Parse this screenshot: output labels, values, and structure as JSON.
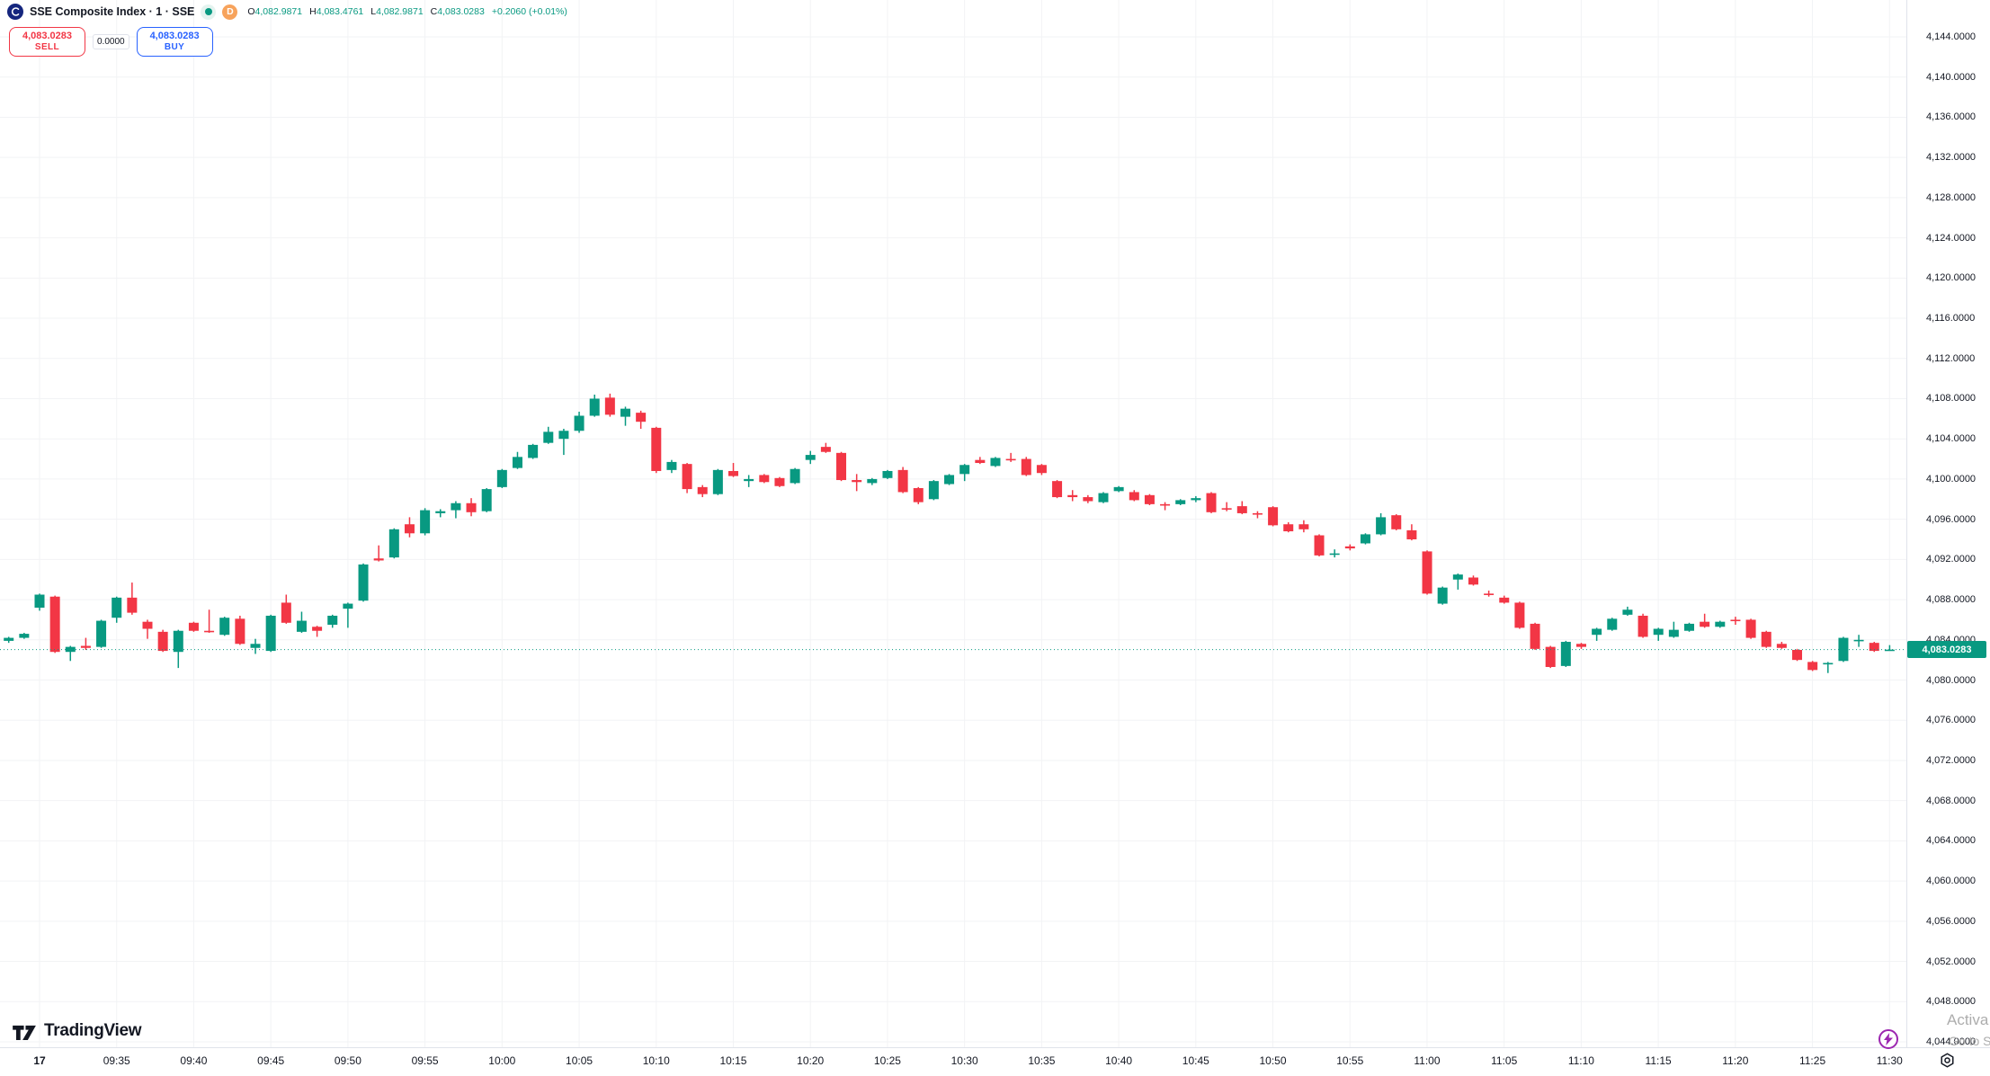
{
  "header": {
    "symbol_title": "SSE Composite Index · 1 · SSE",
    "status_dot_color": "#089981",
    "delay_badge": "D",
    "ohlc": {
      "open_label": "O",
      "open": "4,082.9871",
      "high_label": "H",
      "high": "4,083.4761",
      "low_label": "L",
      "low": "4,082.9871",
      "close_label": "C",
      "close": "4,083.0283",
      "change": "+0.2060 (+0.01%)"
    },
    "sell_button": {
      "price": "4,083.0283",
      "label": "SELL"
    },
    "spread": "0.0000",
    "buy_button": {
      "price": "4,083.0283",
      "label": "BUY"
    }
  },
  "colors": {
    "up": "#089981",
    "down": "#F23645",
    "buy_blue": "#2962FF",
    "sell_red": "#F23645",
    "badge_orange": "#F7A35C",
    "flash_purple": "#9C27B0",
    "grid": "#f2f3f5",
    "axis_text": "#131722"
  },
  "chart_data": {
    "type": "candlestick",
    "title": "SSE Composite Index, 1 minute, SSE",
    "xlabel": "time",
    "ylabel": "price",
    "ylim": [
      4044,
      4144
    ],
    "grid": true,
    "legend_position": "top-left",
    "current_price": 4083.0283,
    "candles_format": [
      "time",
      "open",
      "high",
      "low",
      "close"
    ],
    "candles": [
      [
        "09:28",
        4083.9,
        4084.3,
        4083.7,
        4084.2
      ],
      [
        "09:29",
        4084.2,
        4084.7,
        4084.1,
        4084.6
      ],
      [
        "09:30",
        4087.2,
        4088.6,
        4086.9,
        4088.5
      ],
      [
        "09:31",
        4088.3,
        4088.4,
        4082.7,
        4082.8
      ],
      [
        "09:32",
        4082.8,
        4083.4,
        4081.9,
        4083.3
      ],
      [
        "09:33",
        4083.4,
        4084.2,
        4083.0,
        4083.2
      ],
      [
        "09:34",
        4083.3,
        4086.0,
        4083.2,
        4085.9
      ],
      [
        "09:35",
        4086.2,
        4088.3,
        4085.7,
        4088.2
      ],
      [
        "09:36",
        4088.2,
        4089.7,
        4086.5,
        4086.7
      ],
      [
        "09:37",
        4085.8,
        4086.0,
        4084.1,
        4085.1
      ],
      [
        "09:38",
        4084.8,
        4085.0,
        4082.8,
        4082.9
      ],
      [
        "09:39",
        4082.8,
        4085.0,
        4081.2,
        4084.9
      ],
      [
        "09:40",
        4085.7,
        4085.8,
        4084.8,
        4084.9
      ],
      [
        "09:41",
        4084.9,
        4087.0,
        4084.7,
        4084.8
      ],
      [
        "09:42",
        4084.5,
        4086.3,
        4084.4,
        4086.2
      ],
      [
        "09:43",
        4086.1,
        4086.4,
        4083.5,
        4083.6
      ],
      [
        "09:44",
        4083.2,
        4084.1,
        4082.6,
        4083.6
      ],
      [
        "09:45",
        4082.9,
        4086.5,
        4082.8,
        4086.4
      ],
      [
        "09:46",
        4087.7,
        4088.5,
        4085.6,
        4085.7
      ],
      [
        "09:47",
        4084.8,
        4086.8,
        4084.7,
        4085.9
      ],
      [
        "09:48",
        4085.3,
        4085.4,
        4084.3,
        4084.9
      ],
      [
        "09:49",
        4085.5,
        4086.5,
        4085.2,
        4086.4
      ],
      [
        "09:50",
        4087.1,
        4087.7,
        4085.2,
        4087.6
      ],
      [
        "09:51",
        4087.9,
        4091.6,
        4087.8,
        4091.5
      ],
      [
        "09:52",
        4092.1,
        4093.4,
        4091.8,
        4091.9
      ],
      [
        "09:53",
        4092.2,
        4095.1,
        4092.1,
        4095.0
      ],
      [
        "09:54",
        4095.5,
        4096.2,
        4094.2,
        4094.6
      ],
      [
        "09:55",
        4094.6,
        4097.1,
        4094.4,
        4096.9
      ],
      [
        "09:56",
        4096.6,
        4097.0,
        4096.2,
        4096.8
      ],
      [
        "09:57",
        4096.9,
        4097.8,
        4096.1,
        4097.6
      ],
      [
        "09:58",
        4097.6,
        4098.1,
        4096.3,
        4096.7
      ],
      [
        "09:59",
        4096.8,
        4099.1,
        4096.7,
        4099.0
      ],
      [
        "10:00",
        4099.2,
        4101.0,
        4099.1,
        4100.9
      ],
      [
        "10:01",
        4101.1,
        4102.7,
        4101.0,
        4102.2
      ],
      [
        "10:02",
        4102.1,
        4103.5,
        4102.0,
        4103.4
      ],
      [
        "10:03",
        4103.6,
        4105.2,
        4103.5,
        4104.7
      ],
      [
        "10:04",
        4104.0,
        4105.0,
        4102.4,
        4104.8
      ],
      [
        "10:05",
        4104.8,
        4106.7,
        4104.6,
        4106.3
      ],
      [
        "10:06",
        4106.3,
        4108.4,
        4106.2,
        4108.0
      ],
      [
        "10:07",
        4108.1,
        4108.5,
        4106.2,
        4106.4
      ],
      [
        "10:08",
        4106.2,
        4107.2,
        4105.3,
        4107.0
      ],
      [
        "10:09",
        4106.6,
        4106.8,
        4105.0,
        4105.7
      ],
      [
        "10:10",
        4105.1,
        4105.2,
        4100.6,
        4100.8
      ],
      [
        "10:11",
        4100.9,
        4101.9,
        4100.6,
        4101.7
      ],
      [
        "10:12",
        4101.5,
        4101.6,
        4098.6,
        4099.0
      ],
      [
        "10:13",
        4099.2,
        4099.4,
        4098.2,
        4098.5
      ],
      [
        "10:14",
        4098.5,
        4101.0,
        4098.4,
        4100.9
      ],
      [
        "10:15",
        4100.8,
        4101.6,
        4100.2,
        4100.3
      ],
      [
        "10:16",
        4099.8,
        4100.4,
        4099.2,
        4100.0
      ],
      [
        "10:17",
        4100.4,
        4100.5,
        4099.6,
        4099.7
      ],
      [
        "10:18",
        4100.1,
        4100.2,
        4099.2,
        4099.3
      ],
      [
        "10:19",
        4099.6,
        4101.1,
        4099.5,
        4101.0
      ],
      [
        "10:20",
        4101.9,
        4102.8,
        4101.5,
        4102.4
      ],
      [
        "10:21",
        4103.2,
        4103.6,
        4102.6,
        4102.7
      ],
      [
        "10:22",
        4102.6,
        4102.7,
        4099.8,
        4099.9
      ],
      [
        "10:23",
        4099.9,
        4100.5,
        4098.8,
        4099.7
      ],
      [
        "10:24",
        4099.6,
        4100.1,
        4099.4,
        4100.0
      ],
      [
        "10:25",
        4100.1,
        4100.9,
        4100.0,
        4100.8
      ],
      [
        "10:26",
        4100.9,
        4101.2,
        4098.6,
        4098.7
      ],
      [
        "10:27",
        4099.1,
        4099.2,
        4097.5,
        4097.7
      ],
      [
        "10:28",
        4098.0,
        4099.9,
        4097.9,
        4099.8
      ],
      [
        "10:29",
        4099.5,
        4100.5,
        4099.4,
        4100.4
      ],
      [
        "10:30",
        4100.5,
        4101.5,
        4099.8,
        4101.4
      ],
      [
        "10:31",
        4101.9,
        4102.2,
        4101.5,
        4101.6
      ],
      [
        "10:32",
        4101.3,
        4102.2,
        4101.2,
        4102.1
      ],
      [
        "10:33",
        4102.0,
        4102.6,
        4101.7,
        4101.9
      ],
      [
        "10:34",
        4102.0,
        4102.2,
        4100.3,
        4100.4
      ],
      [
        "10:35",
        4101.4,
        4101.5,
        4100.4,
        4100.6
      ],
      [
        "10:36",
        4099.8,
        4099.9,
        4098.1,
        4098.2
      ],
      [
        "10:37",
        4098.4,
        4098.9,
        4097.8,
        4098.2
      ],
      [
        "10:38",
        4098.2,
        4098.4,
        4097.6,
        4097.8
      ],
      [
        "10:39",
        4097.7,
        4098.7,
        4097.6,
        4098.6
      ],
      [
        "10:40",
        4098.8,
        4099.3,
        4098.7,
        4099.2
      ],
      [
        "10:41",
        4098.7,
        4098.9,
        4097.8,
        4097.9
      ],
      [
        "10:42",
        4098.4,
        4098.5,
        4097.4,
        4097.5
      ],
      [
        "10:43",
        4097.5,
        4097.7,
        4096.9,
        4097.4
      ],
      [
        "10:44",
        4097.5,
        4098.0,
        4097.4,
        4097.9
      ],
      [
        "10:45",
        4097.9,
        4098.3,
        4097.7,
        4098.1
      ],
      [
        "10:46",
        4098.6,
        4098.7,
        4096.6,
        4096.7
      ],
      [
        "10:47",
        4097.1,
        4097.7,
        4096.8,
        4097.0
      ],
      [
        "10:48",
        4097.3,
        4097.8,
        4096.5,
        4096.6
      ],
      [
        "10:49",
        4096.6,
        4096.8,
        4096.1,
        4096.5
      ],
      [
        "10:50",
        4097.2,
        4097.3,
        4095.3,
        4095.4
      ],
      [
        "10:51",
        4095.5,
        4095.7,
        4094.7,
        4094.8
      ],
      [
        "10:52",
        4095.5,
        4095.9,
        4094.7,
        4095.0
      ],
      [
        "10:53",
        4094.4,
        4094.5,
        4092.3,
        4092.4
      ],
      [
        "10:54",
        4092.5,
        4093.0,
        4092.2,
        4092.6
      ],
      [
        "10:55",
        4093.3,
        4093.5,
        4092.9,
        4093.1
      ],
      [
        "10:56",
        4093.6,
        4094.6,
        4093.5,
        4094.5
      ],
      [
        "10:57",
        4094.5,
        4096.6,
        4094.4,
        4096.2
      ],
      [
        "10:58",
        4096.4,
        4096.5,
        4094.9,
        4095.0
      ],
      [
        "10:59",
        4094.9,
        4095.5,
        4093.9,
        4094.0
      ],
      [
        "11:00",
        4092.8,
        4092.9,
        4088.5,
        4088.6
      ],
      [
        "11:01",
        4087.6,
        4089.3,
        4087.5,
        4089.2
      ],
      [
        "11:02",
        4090.0,
        4090.6,
        4089.0,
        4090.5
      ],
      [
        "11:03",
        4090.2,
        4090.4,
        4089.4,
        4089.5
      ],
      [
        "11:04",
        4088.6,
        4088.9,
        4088.3,
        4088.5
      ],
      [
        "11:05",
        4088.2,
        4088.4,
        4087.6,
        4087.7
      ],
      [
        "11:06",
        4087.7,
        4087.8,
        4085.1,
        4085.2
      ],
      [
        "11:07",
        4085.6,
        4085.7,
        4083.0,
        4083.1
      ],
      [
        "11:08",
        4083.3,
        4083.4,
        4081.2,
        4081.3
      ],
      [
        "11:09",
        4081.4,
        4083.9,
        4081.3,
        4083.8
      ],
      [
        "11:10",
        4083.6,
        4083.7,
        4083.1,
        4083.3
      ],
      [
        "11:11",
        4084.5,
        4085.2,
        4083.9,
        4085.1
      ],
      [
        "11:12",
        4085.0,
        4086.2,
        4084.9,
        4086.1
      ],
      [
        "11:13",
        4086.5,
        4087.3,
        4086.4,
        4087.0
      ],
      [
        "11:14",
        4086.4,
        4086.6,
        4084.2,
        4084.3
      ],
      [
        "11:15",
        4084.5,
        4085.2,
        4083.9,
        4085.1
      ],
      [
        "11:16",
        4084.3,
        4085.8,
        4084.2,
        4085.0
      ],
      [
        "11:17",
        4084.9,
        4085.7,
        4084.8,
        4085.6
      ],
      [
        "11:18",
        4085.8,
        4086.6,
        4085.2,
        4085.3
      ],
      [
        "11:19",
        4085.3,
        4085.9,
        4085.2,
        4085.8
      ],
      [
        "11:20",
        4086.0,
        4086.3,
        4085.5,
        4085.9
      ],
      [
        "11:21",
        4086.0,
        4086.1,
        4084.1,
        4084.2
      ],
      [
        "11:22",
        4084.8,
        4084.9,
        4083.2,
        4083.3
      ],
      [
        "11:23",
        4083.6,
        4083.8,
        4083.1,
        4083.2
      ],
      [
        "11:24",
        4083.0,
        4083.1,
        4081.9,
        4082.0
      ],
      [
        "11:25",
        4081.8,
        4081.9,
        4080.9,
        4081.0
      ],
      [
        "11:26",
        4081.6,
        4081.8,
        4080.7,
        4081.7
      ],
      [
        "11:27",
        4081.9,
        4084.3,
        4081.8,
        4084.2
      ],
      [
        "11:28",
        4083.9,
        4084.5,
        4083.3,
        4084.0
      ],
      [
        "11:29",
        4083.7,
        4083.8,
        4082.8,
        4082.9
      ],
      [
        "11:30",
        4082.9871,
        4083.4761,
        4082.9871,
        4083.0283
      ]
    ]
  },
  "price_axis": {
    "labels": [
      "4,144.0000",
      "4,140.0000",
      "4,136.0000",
      "4,132.0000",
      "4,128.0000",
      "4,124.0000",
      "4,120.0000",
      "4,116.0000",
      "4,112.0000",
      "4,108.0000",
      "4,104.0000",
      "4,100.0000",
      "4,096.0000",
      "4,092.0000",
      "4,088.0000",
      "4,084.0000",
      "4,080.0000",
      "4,076.0000",
      "4,072.0000",
      "4,068.0000",
      "4,064.0000",
      "4,060.0000",
      "4,056.0000",
      "4,052.0000",
      "4,048.0000",
      "4,044.0000"
    ],
    "current_price_label": "4,083.0283"
  },
  "time_axis": {
    "labels": [
      "17",
      "09:35",
      "09:40",
      "09:45",
      "09:50",
      "09:55",
      "10:00",
      "10:05",
      "10:10",
      "10:15",
      "10:20",
      "10:25",
      "10:30",
      "10:35",
      "10:40",
      "10:45",
      "10:50",
      "10:55",
      "11:00",
      "11:05",
      "11:10",
      "11:15",
      "11:20",
      "11:25",
      "11:30"
    ]
  },
  "footer": {
    "logo_text": "TradingView"
  },
  "watermark": {
    "line1": "Activa",
    "line2": "Go to S"
  }
}
